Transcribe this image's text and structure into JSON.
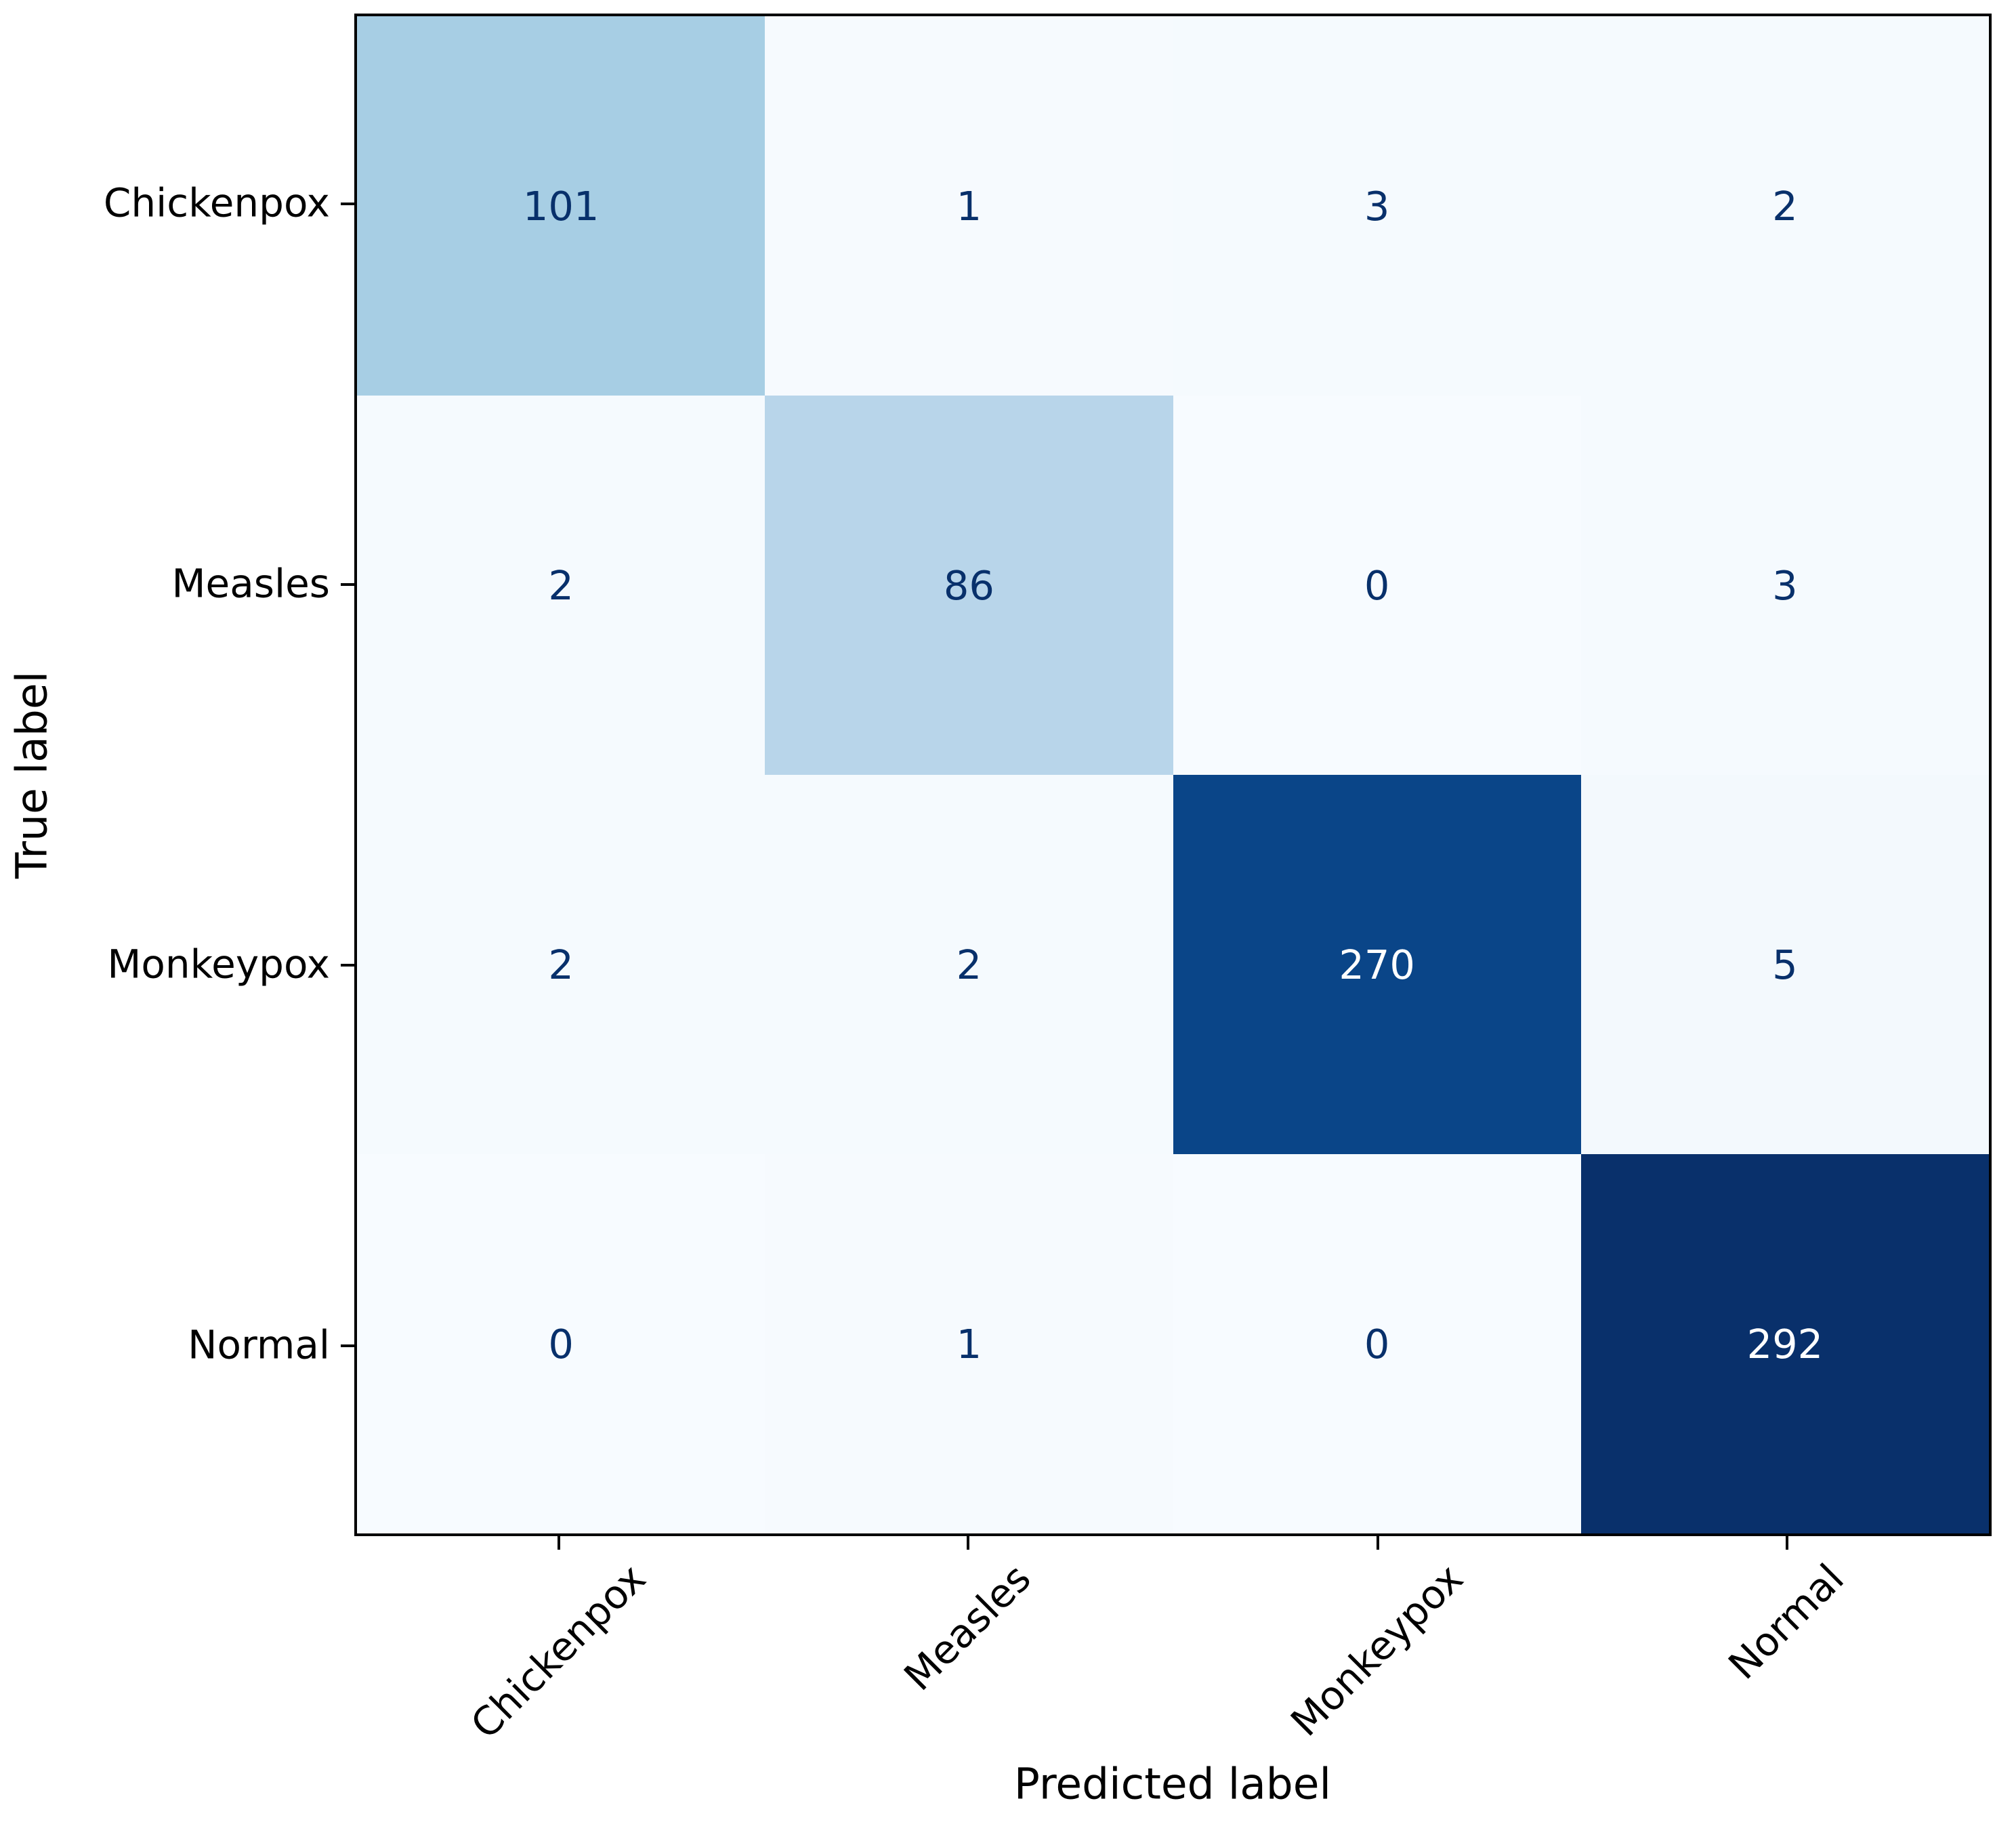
{
  "chart_data": {
    "type": "heatmap",
    "subtype": "confusion-matrix",
    "title": "",
    "xlabel": "Predicted label",
    "ylabel": "True label",
    "x_categories": [
      "Chickenpox",
      "Measles",
      "Monkeypox",
      "Normal"
    ],
    "y_categories": [
      "Chickenpox",
      "Measles",
      "Monkeypox",
      "Normal"
    ],
    "matrix": [
      [
        101,
        1,
        3,
        2
      ],
      [
        2,
        86,
        0,
        3
      ],
      [
        2,
        2,
        270,
        5
      ],
      [
        0,
        1,
        0,
        292
      ]
    ],
    "vmin": 0,
    "vmax": 292,
    "colormap": "Blues",
    "legend": "none",
    "colorbar_shown": false,
    "grid": false,
    "cell_colors": [
      [
        "#a7cee4",
        "#f6fafe",
        "#f5fafe",
        "#f5fafe"
      ],
      [
        "#f5fafe",
        "#b8d5ea",
        "#f7fbff",
        "#f5fafe"
      ],
      [
        "#f5fafe",
        "#f5fafe",
        "#0a4588",
        "#f3f9fd"
      ],
      [
        "#f7fbff",
        "#f6fafe",
        "#f7fbff",
        "#09306b"
      ]
    ],
    "cell_text_colors": [
      [
        "#08306b",
        "#08306b",
        "#08306b",
        "#08306b"
      ],
      [
        "#08306b",
        "#08306b",
        "#08306b",
        "#08306b"
      ],
      [
        "#08306b",
        "#08306b",
        "#ffffff",
        "#08306b"
      ],
      [
        "#08306b",
        "#08306b",
        "#08306b",
        "#ffffff"
      ]
    ],
    "spine_color": "#000000",
    "tick_color": "#000000",
    "background_color": "#ffffff"
  }
}
